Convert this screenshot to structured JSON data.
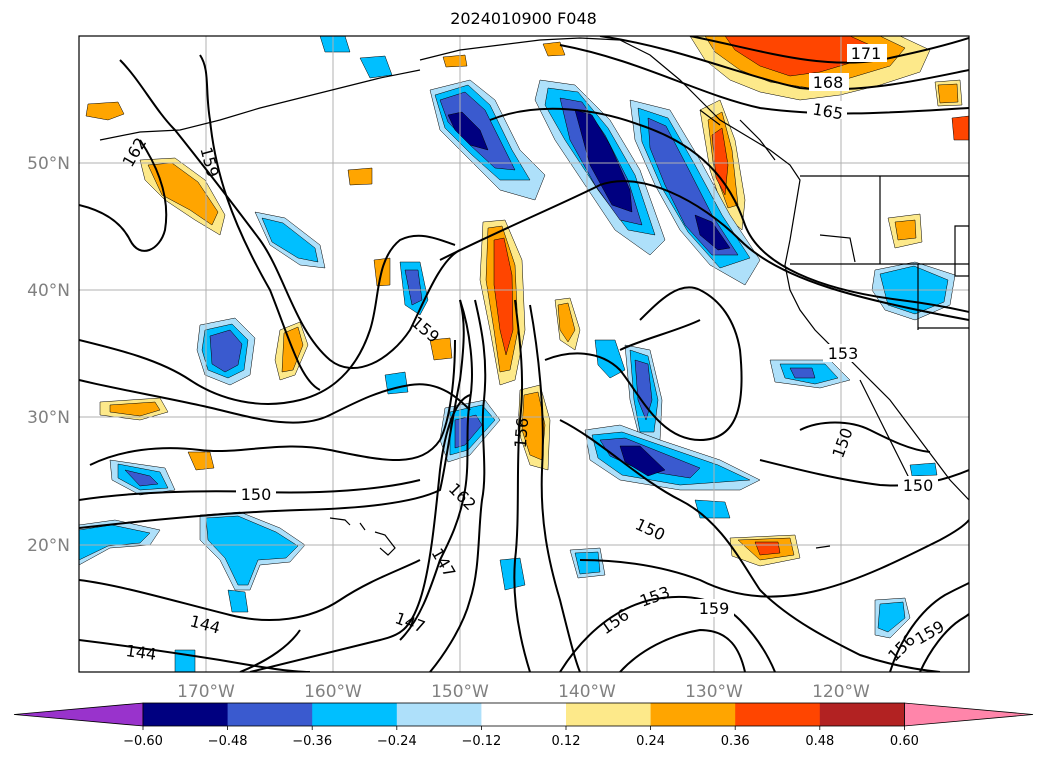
{
  "title": "2024010900 F048",
  "map": {
    "lon_range": [
      -180,
      -110
    ],
    "lat_range": [
      10,
      60
    ],
    "lon_ticks": [
      "170°W",
      "160°W",
      "150°W",
      "140°W",
      "130°W",
      "120°W"
    ],
    "lat_ticks": [
      "50°N",
      "40°N",
      "30°N",
      "20°N"
    ],
    "gridlines": true,
    "contour_labels": [
      "162",
      "159",
      "159",
      "171",
      "168",
      "165",
      "153",
      "150",
      "150",
      "150",
      "156",
      "162",
      "150",
      "147",
      "147",
      "144",
      "144",
      "153",
      "159",
      "156",
      "156",
      "159"
    ]
  },
  "colorbar": {
    "orientation": "horizontal",
    "extend": "both",
    "tick_labels": [
      "−0.60",
      "−0.48",
      "−0.36",
      "−0.24",
      "−0.12",
      "0.12",
      "0.24",
      "0.36",
      "0.48",
      "0.60"
    ],
    "colors": [
      "#9933cc",
      "#000080",
      "#3a5acf",
      "#00bfff",
      "#aee0fa",
      "#ffffff",
      "#fde98a",
      "#ffa500",
      "#ff4500",
      "#b22222",
      "#ff85aa"
    ]
  }
}
